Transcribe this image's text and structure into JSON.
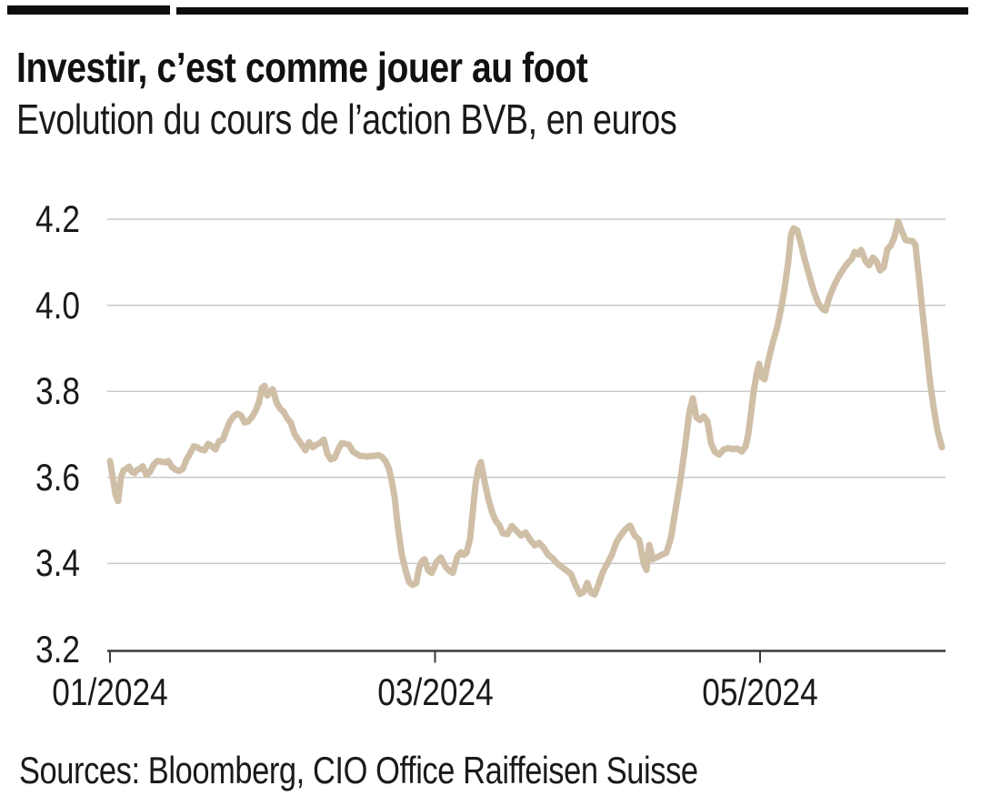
{
  "header": {
    "title": "Investir, c’est comme jouer au foot",
    "subtitle": "Evolution du cours de l’action BVB, en euros"
  },
  "footer": {
    "sources": "Sources: Bloomberg, CIO Office Raiffeisen Suisse"
  },
  "chart_data": {
    "type": "line",
    "title": "Investir, c’est comme jouer au foot",
    "subtitle": "Evolution du cours de l’action BVB, en euros",
    "source": "Sources: Bloomberg, CIO Office Raiffeisen Suisse",
    "x_axis": {
      "unit": "months since 01/2024",
      "range": [
        0,
        5.16
      ],
      "ticks": [
        {
          "pos": 0,
          "label": "01/2024"
        },
        {
          "pos": 2,
          "label": "03/2024"
        },
        {
          "pos": 4,
          "label": "05/2024"
        }
      ]
    },
    "y_axis": {
      "label": "EUR",
      "range": [
        3.2,
        4.2
      ],
      "ticks": [
        "3.2",
        "3.4",
        "3.6",
        "3.8",
        "4.0",
        "4.2"
      ],
      "grid": true
    },
    "colors": {
      "line": "#d0bfa7",
      "grid": "#c9c9c9",
      "axis": "#3a3a3a",
      "text": "#1a1a1a"
    },
    "series": [
      {
        "name": "Cours de l’action BVB (EUR)",
        "color": "#d0bfa7",
        "points": [
          [
            0.0,
            3.638
          ],
          [
            0.017,
            3.6
          ],
          [
            0.034,
            3.56
          ],
          [
            0.05,
            3.545
          ],
          [
            0.067,
            3.6
          ],
          [
            0.084,
            3.617
          ],
          [
            0.101,
            3.62
          ],
          [
            0.117,
            3.625
          ],
          [
            0.134,
            3.613
          ],
          [
            0.151,
            3.61
          ],
          [
            0.168,
            3.618
          ],
          [
            0.185,
            3.62
          ],
          [
            0.201,
            3.626
          ],
          [
            0.224,
            3.606
          ],
          [
            0.246,
            3.613
          ],
          [
            0.269,
            3.63
          ],
          [
            0.291,
            3.638
          ],
          [
            0.313,
            3.637
          ],
          [
            0.336,
            3.635
          ],
          [
            0.358,
            3.638
          ],
          [
            0.38,
            3.625
          ],
          [
            0.403,
            3.618
          ],
          [
            0.425,
            3.615
          ],
          [
            0.448,
            3.62
          ],
          [
            0.47,
            3.641
          ],
          [
            0.492,
            3.655
          ],
          [
            0.515,
            3.672
          ],
          [
            0.537,
            3.67
          ],
          [
            0.559,
            3.665
          ],
          [
            0.582,
            3.663
          ],
          [
            0.604,
            3.678
          ],
          [
            0.627,
            3.672
          ],
          [
            0.649,
            3.665
          ],
          [
            0.671,
            3.684
          ],
          [
            0.694,
            3.688
          ],
          [
            0.716,
            3.71
          ],
          [
            0.738,
            3.73
          ],
          [
            0.761,
            3.742
          ],
          [
            0.783,
            3.748
          ],
          [
            0.806,
            3.744
          ],
          [
            0.828,
            3.728
          ],
          [
            0.85,
            3.73
          ],
          [
            0.873,
            3.74
          ],
          [
            0.895,
            3.754
          ],
          [
            0.917,
            3.775
          ],
          [
            0.934,
            3.808
          ],
          [
            0.951,
            3.813
          ],
          [
            0.968,
            3.79
          ],
          [
            0.985,
            3.8
          ],
          [
            1.001,
            3.805
          ],
          [
            1.024,
            3.775
          ],
          [
            1.046,
            3.76
          ],
          [
            1.069,
            3.752
          ],
          [
            1.091,
            3.737
          ],
          [
            1.113,
            3.727
          ],
          [
            1.136,
            3.7
          ],
          [
            1.158,
            3.688
          ],
          [
            1.18,
            3.676
          ],
          [
            1.203,
            3.663
          ],
          [
            1.225,
            3.682
          ],
          [
            1.247,
            3.67
          ],
          [
            1.27,
            3.676
          ],
          [
            1.292,
            3.68
          ],
          [
            1.315,
            3.688
          ],
          [
            1.337,
            3.655
          ],
          [
            1.359,
            3.642
          ],
          [
            1.382,
            3.645
          ],
          [
            1.404,
            3.665
          ],
          [
            1.426,
            3.68
          ],
          [
            1.449,
            3.678
          ],
          [
            1.471,
            3.676
          ],
          [
            1.494,
            3.66
          ],
          [
            1.516,
            3.655
          ],
          [
            1.538,
            3.65
          ],
          [
            1.561,
            3.65
          ],
          [
            1.583,
            3.648
          ],
          [
            1.606,
            3.65
          ],
          [
            1.628,
            3.65
          ],
          [
            1.65,
            3.652
          ],
          [
            1.673,
            3.648
          ],
          [
            1.695,
            3.638
          ],
          [
            1.717,
            3.62
          ],
          [
            1.734,
            3.59
          ],
          [
            1.751,
            3.555
          ],
          [
            1.773,
            3.48
          ],
          [
            1.796,
            3.42
          ],
          [
            1.818,
            3.385
          ],
          [
            1.84,
            3.357
          ],
          [
            1.862,
            3.35
          ],
          [
            1.885,
            3.355
          ],
          [
            1.902,
            3.39
          ],
          [
            1.919,
            3.405
          ],
          [
            1.936,
            3.41
          ],
          [
            1.958,
            3.384
          ],
          [
            1.98,
            3.378
          ],
          [
            2.008,
            3.403
          ],
          [
            2.036,
            3.414
          ],
          [
            2.064,
            3.393
          ],
          [
            2.092,
            3.382
          ],
          [
            2.109,
            3.378
          ],
          [
            2.137,
            3.416
          ],
          [
            2.159,
            3.426
          ],
          [
            2.176,
            3.42
          ],
          [
            2.193,
            3.424
          ],
          [
            2.215,
            3.456
          ],
          [
            2.232,
            3.519
          ],
          [
            2.249,
            3.583
          ],
          [
            2.266,
            3.62
          ],
          [
            2.282,
            3.636
          ],
          [
            2.305,
            3.59
          ],
          [
            2.327,
            3.551
          ],
          [
            2.35,
            3.52
          ],
          [
            2.372,
            3.5
          ],
          [
            2.394,
            3.49
          ],
          [
            2.417,
            3.47
          ],
          [
            2.445,
            3.468
          ],
          [
            2.473,
            3.487
          ],
          [
            2.501,
            3.476
          ],
          [
            2.529,
            3.465
          ],
          [
            2.557,
            3.472
          ],
          [
            2.585,
            3.455
          ],
          [
            2.613,
            3.442
          ],
          [
            2.641,
            3.448
          ],
          [
            2.669,
            3.436
          ],
          [
            2.696,
            3.42
          ],
          [
            2.724,
            3.412
          ],
          [
            2.752,
            3.4
          ],
          [
            2.78,
            3.392
          ],
          [
            2.808,
            3.384
          ],
          [
            2.836,
            3.376
          ],
          [
            2.864,
            3.35
          ],
          [
            2.892,
            3.329
          ],
          [
            2.915,
            3.334
          ],
          [
            2.937,
            3.355
          ],
          [
            2.96,
            3.332
          ],
          [
            2.982,
            3.328
          ],
          [
            3.004,
            3.35
          ],
          [
            3.032,
            3.38
          ],
          [
            3.06,
            3.4
          ],
          [
            3.088,
            3.42
          ],
          [
            3.116,
            3.45
          ],
          [
            3.144,
            3.466
          ],
          [
            3.172,
            3.48
          ],
          [
            3.2,
            3.488
          ],
          [
            3.228,
            3.465
          ],
          [
            3.256,
            3.455
          ],
          [
            3.284,
            3.4
          ],
          [
            3.301,
            3.385
          ],
          [
            3.318,
            3.443
          ],
          [
            3.34,
            3.41
          ],
          [
            3.368,
            3.415
          ],
          [
            3.396,
            3.42
          ],
          [
            3.424,
            3.425
          ],
          [
            3.452,
            3.46
          ],
          [
            3.48,
            3.525
          ],
          [
            3.508,
            3.59
          ],
          [
            3.536,
            3.665
          ],
          [
            3.564,
            3.75
          ],
          [
            3.586,
            3.784
          ],
          [
            3.608,
            3.74
          ],
          [
            3.631,
            3.733
          ],
          [
            3.653,
            3.742
          ],
          [
            3.676,
            3.73
          ],
          [
            3.698,
            3.68
          ],
          [
            3.72,
            3.66
          ],
          [
            3.748,
            3.653
          ],
          [
            3.776,
            3.665
          ],
          [
            3.804,
            3.668
          ],
          [
            3.832,
            3.666
          ],
          [
            3.86,
            3.667
          ],
          [
            3.888,
            3.66
          ],
          [
            3.911,
            3.672
          ],
          [
            3.927,
            3.7
          ],
          [
            3.944,
            3.75
          ],
          [
            3.961,
            3.8
          ],
          [
            3.978,
            3.84
          ],
          [
            3.994,
            3.864
          ],
          [
            4.011,
            3.833
          ],
          [
            4.028,
            3.828
          ],
          [
            4.05,
            3.87
          ],
          [
            4.078,
            3.913
          ],
          [
            4.106,
            3.95
          ],
          [
            4.128,
            3.99
          ],
          [
            4.151,
            4.04
          ],
          [
            4.173,
            4.1
          ],
          [
            4.19,
            4.164
          ],
          [
            4.207,
            4.179
          ],
          [
            4.229,
            4.174
          ],
          [
            4.252,
            4.143
          ],
          [
            4.274,
            4.107
          ],
          [
            4.302,
            4.07
          ],
          [
            4.33,
            4.033
          ],
          [
            4.358,
            4.005
          ],
          [
            4.386,
            3.991
          ],
          [
            4.403,
            3.988
          ],
          [
            4.425,
            4.018
          ],
          [
            4.453,
            4.044
          ],
          [
            4.481,
            4.065
          ],
          [
            4.509,
            4.082
          ],
          [
            4.537,
            4.097
          ],
          [
            4.565,
            4.108
          ],
          [
            4.582,
            4.124
          ],
          [
            4.604,
            4.118
          ],
          [
            4.621,
            4.129
          ],
          [
            4.649,
            4.103
          ],
          [
            4.671,
            4.093
          ],
          [
            4.694,
            4.111
          ],
          [
            4.716,
            4.102
          ],
          [
            4.739,
            4.081
          ],
          [
            4.761,
            4.088
          ],
          [
            4.783,
            4.13
          ],
          [
            4.806,
            4.14
          ],
          [
            4.828,
            4.16
          ],
          [
            4.85,
            4.195
          ],
          [
            4.873,
            4.172
          ],
          [
            4.895,
            4.152
          ],
          [
            4.917,
            4.15
          ],
          [
            4.94,
            4.149
          ],
          [
            4.956,
            4.14
          ],
          [
            4.979,
            4.06
          ],
          [
            5.001,
            3.98
          ],
          [
            5.024,
            3.9
          ],
          [
            5.046,
            3.82
          ],
          [
            5.069,
            3.76
          ],
          [
            5.091,
            3.71
          ],
          [
            5.119,
            3.67
          ]
        ]
      }
    ]
  }
}
